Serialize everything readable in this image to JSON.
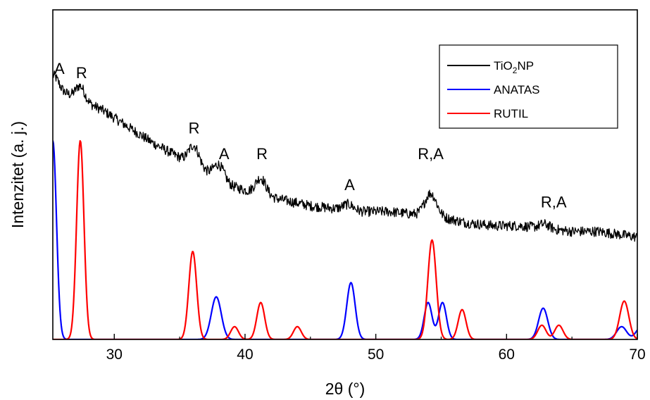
{
  "chart_data": {
    "type": "line",
    "xlabel": "2θ (°)",
    "ylabel": "Intenzitet (a. j.)",
    "xlim": [
      25.3,
      70
    ],
    "ylim": [
      0,
      1.16
    ],
    "x_ticks": [
      30,
      40,
      50,
      60,
      70
    ],
    "x_tick_labels": [
      "30",
      "40",
      "50",
      "60",
      "70"
    ],
    "legend": {
      "placement": "top-right",
      "entries": [
        {
          "series": "TiO2NP",
          "label_main": "TiO",
          "label_sub": "2",
          "label_tail": "NP"
        },
        {
          "series": "ANATAS",
          "label_main": "ANATAS",
          "label_sub": "",
          "label_tail": ""
        },
        {
          "series": "RUTIL",
          "label_main": "RUTIL",
          "label_sub": "",
          "label_tail": ""
        }
      ]
    },
    "series": [
      {
        "name": "TiO2NP",
        "color": "#000000",
        "style": "noisy measured pattern",
        "background": [
          [
            25.3,
            0.89
          ],
          [
            27,
            0.85
          ],
          [
            29,
            0.81
          ],
          [
            31,
            0.75
          ],
          [
            33,
            0.69
          ],
          [
            35,
            0.64
          ],
          [
            37,
            0.59
          ],
          [
            39,
            0.54
          ],
          [
            41,
            0.51
          ],
          [
            43,
            0.49
          ],
          [
            45,
            0.47
          ],
          [
            47,
            0.46
          ],
          [
            49,
            0.45
          ],
          [
            51,
            0.45
          ],
          [
            53,
            0.44
          ],
          [
            55,
            0.43
          ],
          [
            57,
            0.41
          ],
          [
            59,
            0.4
          ],
          [
            61,
            0.4
          ],
          [
            63,
            0.39
          ],
          [
            65,
            0.38
          ],
          [
            67,
            0.38
          ],
          [
            70,
            0.36
          ]
        ],
        "peaks": [
          {
            "x": 25.4,
            "height": 0.04,
            "width": 0.35
          },
          {
            "x": 27.4,
            "height": 0.05,
            "width": 0.35
          },
          {
            "x": 36.1,
            "height": 0.07,
            "width": 0.4
          },
          {
            "x": 38.0,
            "height": 0.05,
            "width": 0.4
          },
          {
            "x": 41.2,
            "height": 0.06,
            "width": 0.4
          },
          {
            "x": 47.9,
            "height": 0.02,
            "width": 0.4
          },
          {
            "x": 54.2,
            "height": 0.08,
            "width": 0.45
          },
          {
            "x": 62.9,
            "height": 0.015,
            "width": 0.4
          }
        ],
        "noise_amplitude": 0.018
      },
      {
        "name": "ANATAS",
        "color": "#0000ff",
        "peaks": [
          {
            "x": 25.3,
            "height": 0.7,
            "width": 0.28
          },
          {
            "x": 37.8,
            "height": 0.15,
            "width": 0.38
          },
          {
            "x": 48.1,
            "height": 0.2,
            "width": 0.32
          },
          {
            "x": 54.0,
            "height": 0.13,
            "width": 0.3
          },
          {
            "x": 55.1,
            "height": 0.13,
            "width": 0.3
          },
          {
            "x": 62.8,
            "height": 0.11,
            "width": 0.35
          },
          {
            "x": 68.8,
            "height": 0.045,
            "width": 0.38
          },
          {
            "x": 70.3,
            "height": 0.045,
            "width": 0.38
          }
        ]
      },
      {
        "name": "RUTIL",
        "color": "#ff0000",
        "peaks": [
          {
            "x": 27.4,
            "height": 0.7,
            "width": 0.28
          },
          {
            "x": 36.0,
            "height": 0.31,
            "width": 0.3
          },
          {
            "x": 39.2,
            "height": 0.045,
            "width": 0.3
          },
          {
            "x": 41.2,
            "height": 0.13,
            "width": 0.3
          },
          {
            "x": 44.0,
            "height": 0.045,
            "width": 0.3
          },
          {
            "x": 54.3,
            "height": 0.35,
            "width": 0.32
          },
          {
            "x": 56.6,
            "height": 0.105,
            "width": 0.3
          },
          {
            "x": 62.7,
            "height": 0.05,
            "width": 0.32
          },
          {
            "x": 64.0,
            "height": 0.05,
            "width": 0.32
          },
          {
            "x": 69.0,
            "height": 0.135,
            "width": 0.35
          }
        ]
      }
    ],
    "annotations": [
      {
        "text": "A",
        "x": 25.8,
        "y": 0.935
      },
      {
        "text": "R",
        "x": 27.5,
        "y": 0.92
      },
      {
        "text": "R",
        "x": 36.1,
        "y": 0.725
      },
      {
        "text": "A",
        "x": 38.4,
        "y": 0.635
      },
      {
        "text": "R",
        "x": 41.3,
        "y": 0.635
      },
      {
        "text": "A",
        "x": 48.0,
        "y": 0.525
      },
      {
        "text": "R,A",
        "x": 54.2,
        "y": 0.635
      },
      {
        "text": "R,A",
        "x": 63.6,
        "y": 0.465
      }
    ]
  }
}
